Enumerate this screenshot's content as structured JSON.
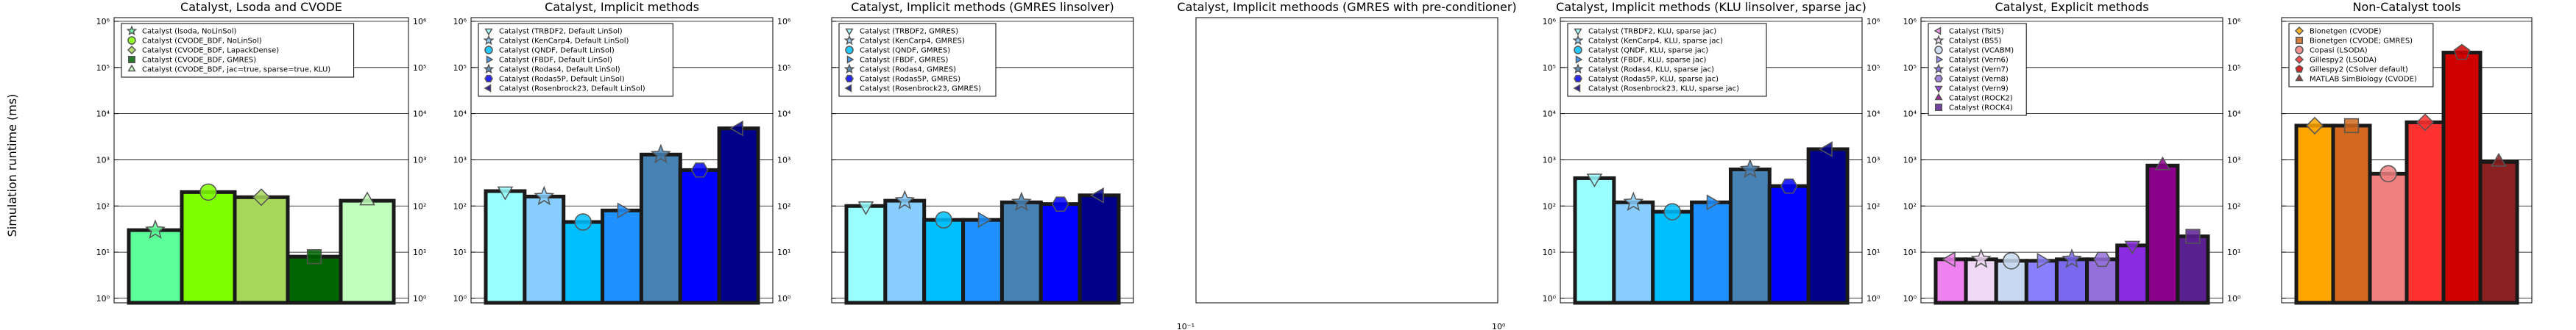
{
  "figure": {
    "ylabel": "Simulation runtime (ms)"
  },
  "chart_data": [
    {
      "type": "bar",
      "title": "Catalyst, Lsoda and CVODE",
      "ylabel": "Simulation runtime (ms)",
      "yscale": "log",
      "ylim": [
        0.8,
        1200000
      ],
      "yticks": [
        "10⁰",
        "10¹",
        "10²",
        "10³",
        "10⁴",
        "10⁵",
        "10⁶"
      ],
      "legend_position": "top-left",
      "categories": [
        "Catalyst (lsoda, NoLinSol)",
        "Catalyst (CVODE_BDF, NoLinSol)",
        "Catalyst (CVODE_BDF, LapackDense)",
        "Catalyst (CVODE_BDF, GMRES)",
        "Catalyst (CVODE_BDF, jac=true, sparse=true, KLU)"
      ],
      "values": [
        30,
        200,
        155,
        8,
        130
      ],
      "colors": [
        "#5cff99",
        "#80ff00",
        "#a6d65a",
        "#006400",
        "#c1ffbc"
      ],
      "markers": [
        "star",
        "circle",
        "diamond",
        "square",
        "triangle-up"
      ]
    },
    {
      "type": "bar",
      "title": "Catalyst, Implicit methods",
      "yscale": "log",
      "ylim": [
        0.8,
        1200000
      ],
      "yticks": [
        "10⁰",
        "10¹",
        "10²",
        "10³",
        "10⁴",
        "10⁵",
        "10⁶"
      ],
      "legend_position": "top-left",
      "categories": [
        "Catalyst (TRBDF2, Default LinSol)",
        "Catalyst (KenCarp4, Default LinSol)",
        "Catalyst (QNDF, Default LinSol)",
        "Catalyst (FBDF, Default LinSol)",
        "Catalyst (Rodas4, Default LinSol)",
        "Catalyst (Rodas5P, Default LinSol)",
        "Catalyst (Rosenbrock23, Default LinSol)"
      ],
      "values": [
        210,
        160,
        45,
        80,
        1300,
        600,
        4800
      ],
      "colors": [
        "#99ffff",
        "#87ceff",
        "#00bfff",
        "#1e90ff",
        "#4682b4",
        "#0000ff",
        "#00008b"
      ],
      "markers": [
        "triangle-down",
        "star",
        "circle",
        "triangle-right",
        "star",
        "hexagon",
        "triangle-left"
      ]
    },
    {
      "type": "bar",
      "title": "Catalyst, Implicit methods (GMRES linsolver)",
      "yscale": "log",
      "ylim": [
        0.8,
        1200000
      ],
      "legend_position": "top-left",
      "categories": [
        "Catalyst (TRBDF2, GMRES)",
        "Catalyst (KenCarp4, GMRES)",
        "Catalyst (QNDF, GMRES)",
        "Catalyst (FBDF, GMRES)",
        "Catalyst (Rodas4, GMRES)",
        "Catalyst (Rodas5P, GMRES)",
        "Catalyst (Rosenbrock23, GMRES)"
      ],
      "values": [
        100,
        130,
        50,
        50,
        120,
        110,
        170
      ],
      "colors": [
        "#99ffff",
        "#87ceff",
        "#00bfff",
        "#1e90ff",
        "#4682b4",
        "#0000ff",
        "#00008b"
      ],
      "markers": [
        "triangle-down",
        "star",
        "circle",
        "triangle-right",
        "star",
        "hexagon",
        "triangle-left"
      ]
    },
    {
      "type": "bar",
      "title": "Catalyst, Implicit methoods (GMRES with pre-conditioner)",
      "categories": [],
      "values": [],
      "corner_tick_labels": [
        "10⁻¹",
        "10⁻¹",
        "10⁰"
      ]
    },
    {
      "type": "bar",
      "title": "Catalyst, Implicit methods (KLU linsolver, sparse jac)",
      "yscale": "log",
      "ylim": [
        0.8,
        1200000
      ],
      "yticks": [
        "10⁰",
        "10¹",
        "10²",
        "10³",
        "10⁴",
        "10⁵",
        "10⁶"
      ],
      "legend_position": "top-left",
      "categories": [
        "Catalyst (TRBDF2, KLU, sparse jac)",
        "Catalyst (KenCarp4, KLU, sparse jac)",
        "Catalyst (QNDF, KLU, sparse jac)",
        "Catalyst (FBDF, KLU, sparse jac)",
        "Catalyst (Rodas4, KLU, sparse jac)",
        "Catalyst (Rodas5P, KLU, sparse jac)",
        "Catalyst (Rosenbrock23, KLU, sparse jac)"
      ],
      "values": [
        400,
        120,
        75,
        120,
        620,
        270,
        1700
      ],
      "colors": [
        "#99ffff",
        "#87ceff",
        "#00bfff",
        "#1e90ff",
        "#4682b4",
        "#0000ff",
        "#00008b"
      ],
      "markers": [
        "triangle-down",
        "star",
        "circle",
        "triangle-right",
        "star",
        "hexagon",
        "triangle-left"
      ]
    },
    {
      "type": "bar",
      "title": "Catalyst, Explicit methods",
      "yscale": "log",
      "ylim": [
        0.8,
        1200000
      ],
      "yticks": [
        "10⁰",
        "10¹",
        "10²",
        "10³",
        "10⁴",
        "10⁵",
        "10⁶"
      ],
      "legend_position": "top-left",
      "categories": [
        "Catalyst (Tsit5)",
        "Catalyst (BS5)",
        "Catalyst (VCABM)",
        "Catalyst (Vern6)",
        "Catalyst (Vern7)",
        "Catalyst (Vern8)",
        "Catalyst (Vern9)",
        "Catalyst (ROCK2)",
        "Catalyst (ROCK4)"
      ],
      "values": [
        7,
        7,
        6.5,
        6.5,
        7,
        7,
        14,
        750,
        22
      ],
      "colors": [
        "#ee82ee",
        "#f0d9f5",
        "#c8d8f0",
        "#8a80ff",
        "#7a68ee",
        "#9370db",
        "#8a2be2",
        "#8b008b",
        "#5a2090"
      ],
      "markers": [
        "triangle-left",
        "star",
        "circle",
        "triangle-right",
        "star",
        "hexagon",
        "triangle-down",
        "triangle-up",
        "square"
      ]
    },
    {
      "type": "bar",
      "title": "Non-Catalyst tools",
      "yscale": "log",
      "ylim": [
        0.8,
        1200000
      ],
      "legend_position": "top-left",
      "categories": [
        "Bionetgen (CVODE)",
        "Bionetgen (CVODE; GMRES)",
        "Copasi (LSODA)",
        "Gillespy2 (LSODA)",
        "Gillespy2 (CSolver default)",
        "MATLAB SimBiology (CVODE)"
      ],
      "values": [
        5500,
        5500,
        500,
        6500,
        210000,
        900
      ],
      "colors": [
        "#ffa500",
        "#d2691e",
        "#f08080",
        "#ff3030",
        "#d00000",
        "#8b2020"
      ],
      "markers": [
        "diamond",
        "square",
        "circle",
        "diamond",
        "pentagon",
        "triangle-up"
      ]
    }
  ]
}
